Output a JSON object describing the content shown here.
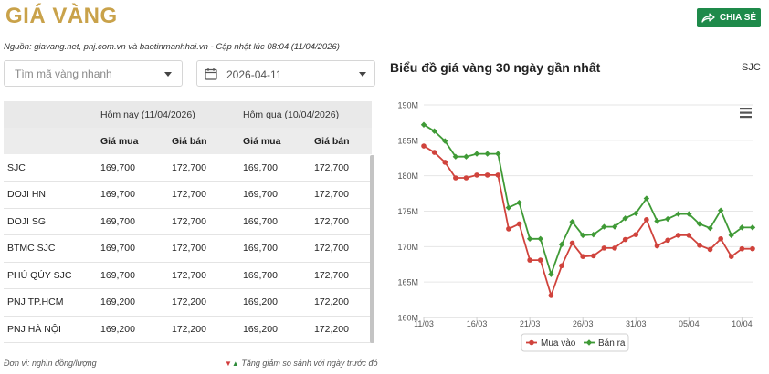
{
  "header": {
    "title": "GIÁ VÀNG",
    "share_label": "CHIA SẺ"
  },
  "source_text": "Nguồn: giavang.net, pnj.com.vn và baotinmanhhai.vn - Cập nhật lúc 08:04 (11/04/2026)",
  "search": {
    "placeholder": "Tìm mã vàng nhanh"
  },
  "date_picker": {
    "value": "2026-04-11"
  },
  "table": {
    "group_today": "Hôm nay (11/04/2026)",
    "group_yesterday": "Hôm qua (10/04/2026)",
    "col_buy": "Giá mua",
    "col_sell": "Giá bán",
    "rows": [
      {
        "name": "SJC",
        "today_buy": "169,700",
        "today_sell": "172,700",
        "yest_buy": "169,700",
        "yest_sell": "172,700"
      },
      {
        "name": "DOJI HN",
        "today_buy": "169,700",
        "today_sell": "172,700",
        "yest_buy": "169,700",
        "yest_sell": "172,700"
      },
      {
        "name": "DOJI SG",
        "today_buy": "169,700",
        "today_sell": "172,700",
        "yest_buy": "169,700",
        "yest_sell": "172,700"
      },
      {
        "name": "BTMC SJC",
        "today_buy": "169,700",
        "today_sell": "172,700",
        "yest_buy": "169,700",
        "yest_sell": "172,700"
      },
      {
        "name": "PHÚ QÚY SJC",
        "today_buy": "169,700",
        "today_sell": "172,700",
        "yest_buy": "169,700",
        "yest_sell": "172,700"
      },
      {
        "name": "PNJ TP.HCM",
        "today_buy": "169,200",
        "today_sell": "172,200",
        "yest_buy": "169,200",
        "yest_sell": "172,200"
      },
      {
        "name": "PNJ HÀ NỘI",
        "today_buy": "169,200",
        "today_sell": "172,200",
        "yest_buy": "169,200",
        "yest_sell": "172,200"
      }
    ]
  },
  "footer": {
    "unit": "Đơn vị: nghìn đồng/lượng",
    "note": "Tăng giảm so sánh với ngày trước đó"
  },
  "chart_title": "Biểu đồ giá vàng 30 ngày gần nhất",
  "chart_tag": "SJC",
  "colors": {
    "buy": "#d0433c",
    "sell": "#3f9a36",
    "gold": "#c9a24a",
    "share": "#1e8a4a"
  },
  "chart_data": {
    "type": "line",
    "x": [
      "11/03",
      "12/03",
      "13/03",
      "14/03",
      "15/03",
      "16/03",
      "17/03",
      "18/03",
      "19/03",
      "20/03",
      "21/03",
      "22/03",
      "23/03",
      "24/03",
      "25/03",
      "26/03",
      "27/03",
      "28/03",
      "29/03",
      "30/03",
      "31/03",
      "01/04",
      "02/04",
      "03/04",
      "04/04",
      "05/04",
      "06/04",
      "07/04",
      "08/04",
      "09/04",
      "10/04",
      "11/04"
    ],
    "x_tick_labels": [
      "11/03",
      "16/03",
      "21/03",
      "26/03",
      "31/03",
      "05/04",
      "10/04"
    ],
    "y_tick_labels": [
      "160M",
      "165M",
      "170M",
      "175M",
      "180M",
      "185M",
      "190M"
    ],
    "ylim": [
      160,
      190
    ],
    "y_unit": "M",
    "series": [
      {
        "name": "Mua vào",
        "values": [
          184.2,
          183.3,
          181.9,
          179.7,
          179.7,
          180.1,
          180.1,
          180.1,
          172.5,
          173.2,
          168.1,
          168.1,
          163.1,
          167.3,
          170.5,
          168.6,
          168.7,
          169.8,
          169.8,
          171.0,
          171.7,
          173.8,
          170.1,
          170.9,
          171.6,
          171.6,
          170.2,
          169.6,
          171.1,
          168.6,
          169.7,
          169.7
        ]
      },
      {
        "name": "Bán ra",
        "values": [
          187.2,
          186.3,
          184.9,
          182.7,
          182.7,
          183.1,
          183.1,
          183.1,
          175.5,
          176.2,
          171.1,
          171.1,
          166.1,
          170.3,
          173.5,
          171.6,
          171.7,
          172.8,
          172.8,
          174.0,
          174.7,
          176.8,
          173.6,
          173.9,
          174.6,
          174.6,
          173.2,
          172.6,
          175.1,
          171.6,
          172.7,
          172.7
        ]
      }
    ]
  }
}
